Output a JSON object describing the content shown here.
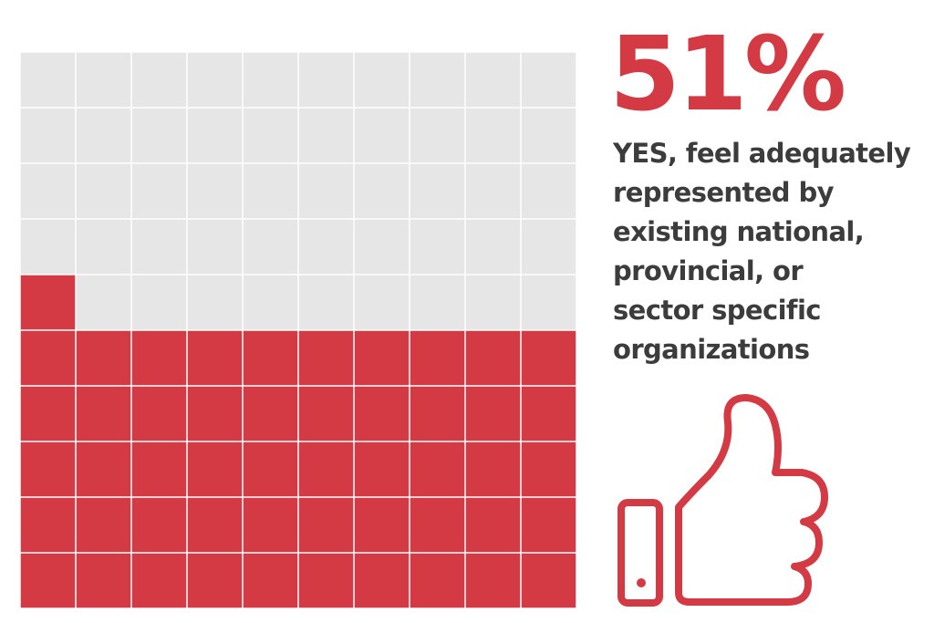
{
  "colors": {
    "accent": "#d43a44",
    "empty": "#e6e6e6",
    "text": "#3c3c3c",
    "gridline": "#ffffff"
  },
  "headline": {
    "percent_label": "51%"
  },
  "caption": {
    "lines": [
      "YES, feel adequately",
      "represented by",
      "existing national,",
      "provincial, or",
      "sector specific",
      "organizations"
    ]
  },
  "icon": {
    "name": "thumbs-up-icon"
  },
  "chart_data": {
    "type": "waffle",
    "rows": 10,
    "columns": 10,
    "filled_units": 51,
    "total_units": 100,
    "fill_from": "bottom-left",
    "value_percent": 51,
    "series": [
      {
        "name": "YES",
        "value": 51,
        "color": "#d43a44"
      },
      {
        "value": 49,
        "color": "#e6e6e6"
      }
    ]
  }
}
